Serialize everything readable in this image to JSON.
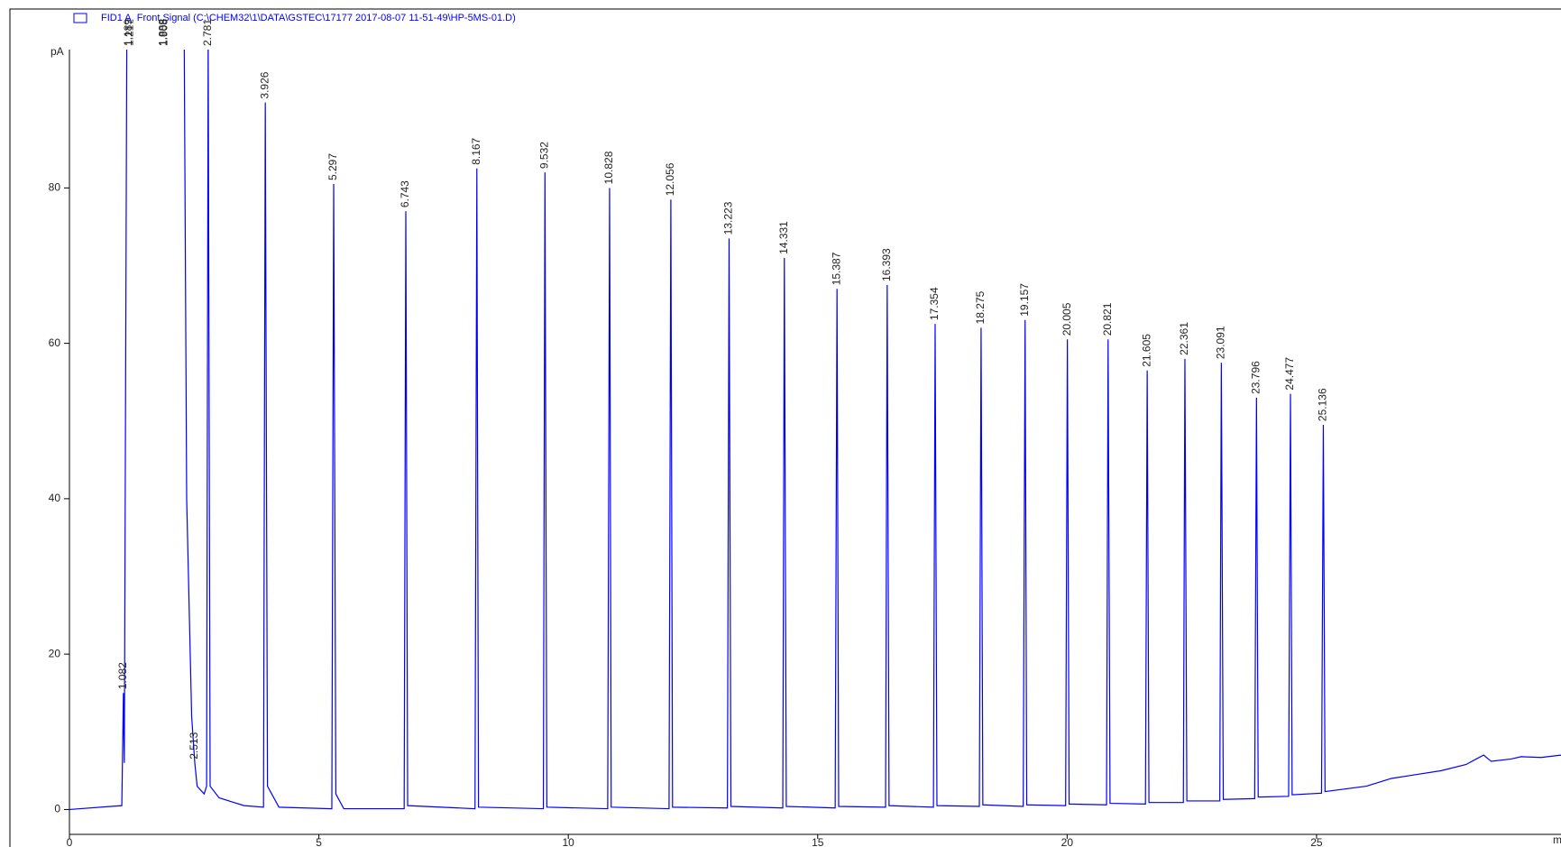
{
  "chart_data": {
    "type": "line",
    "title": "FID1 A, Front Signal (C:\\CHEM32\\1\\DATA\\GSTEC\\17177 2017-08-07 11-51-49\\HP-5MS-01.D)",
    "y_label": "pA",
    "x_label": "min",
    "xlim": [
      0,
      29.9
    ],
    "xticks": [
      0,
      5,
      10,
      15,
      20,
      25
    ],
    "ylim": [
      -3.2,
      97.8
    ],
    "yticks": [
      0,
      20,
      40,
      60,
      80
    ],
    "series": [
      {
        "name": "FID1 A, Front Signal",
        "color": "#0000ff",
        "x": [
          0,
          1.05,
          1.082,
          1.1,
          1.15,
          1.189,
          1.217,
          1.25,
          1.5,
          1.85,
          1.888,
          1.908,
          1.95,
          2.2,
          2.3,
          2.35,
          2.45,
          2.513,
          2.56,
          2.7,
          2.75,
          2.781,
          2.82,
          3.0,
          3.5,
          3.89,
          3.926,
          3.97,
          4.2,
          5.26,
          5.297,
          5.34,
          5.5,
          6.71,
          6.743,
          6.78,
          8.13,
          8.167,
          8.2,
          9.5,
          9.532,
          9.57,
          10.79,
          10.828,
          10.86,
          12.02,
          12.056,
          12.09,
          13.19,
          13.223,
          13.26,
          14.3,
          14.331,
          14.37,
          15.35,
          15.387,
          15.42,
          16.36,
          16.393,
          16.43,
          17.32,
          17.354,
          17.39,
          18.24,
          18.275,
          18.31,
          19.12,
          19.157,
          19.19,
          19.97,
          20.005,
          20.04,
          20.79,
          20.821,
          20.86,
          21.57,
          21.605,
          21.64,
          22.33,
          22.361,
          22.4,
          23.06,
          23.091,
          23.13,
          23.76,
          23.796,
          23.83,
          24.44,
          24.477,
          24.51,
          25.1,
          25.136,
          25.17,
          26,
          26.5,
          27,
          27.5,
          28,
          28.2,
          28.35,
          28.5,
          28.9,
          29.1,
          29.5,
          29.9
        ],
        "values": [
          0,
          0.5,
          15,
          6,
          100,
          100,
          100,
          100,
          100,
          100,
          100,
          100,
          100,
          100,
          100,
          40,
          12,
          6,
          3,
          2,
          3,
          100,
          3,
          1.5,
          0.5,
          0.3,
          91,
          3,
          0.3,
          0.1,
          80.5,
          2,
          0.1,
          0.1,
          77,
          0.5,
          0.1,
          82.5,
          0.3,
          0.1,
          82,
          0.3,
          0.1,
          80,
          0.3,
          0.1,
          78.5,
          0.3,
          0.2,
          73.5,
          0.4,
          0.2,
          71,
          0.4,
          0.2,
          67,
          0.4,
          0.3,
          67.5,
          0.5,
          0.3,
          62.5,
          0.5,
          0.4,
          62,
          0.6,
          0.4,
          63,
          0.6,
          0.5,
          60.5,
          0.7,
          0.6,
          60.5,
          0.8,
          0.7,
          56.5,
          0.9,
          0.9,
          58,
          1.1,
          1.1,
          57.5,
          1.3,
          1.4,
          53,
          1.6,
          1.7,
          53.5,
          1.9,
          2.1,
          49.5,
          2.3,
          3,
          4,
          4.5,
          5,
          5.8,
          6.5,
          7,
          6.2,
          6.5,
          6.8,
          6.7,
          7
        ]
      }
    ],
    "peaks": {
      "x": [
        1.082,
        1.189,
        1.217,
        1.888,
        1.908,
        2.513,
        2.781,
        3.926,
        5.297,
        6.743,
        8.167,
        9.532,
        10.828,
        12.056,
        13.223,
        14.331,
        15.387,
        16.393,
        17.354,
        18.275,
        19.157,
        20.005,
        20.821,
        21.605,
        22.361,
        23.091,
        23.796,
        24.477,
        25.136
      ]
    }
  }
}
